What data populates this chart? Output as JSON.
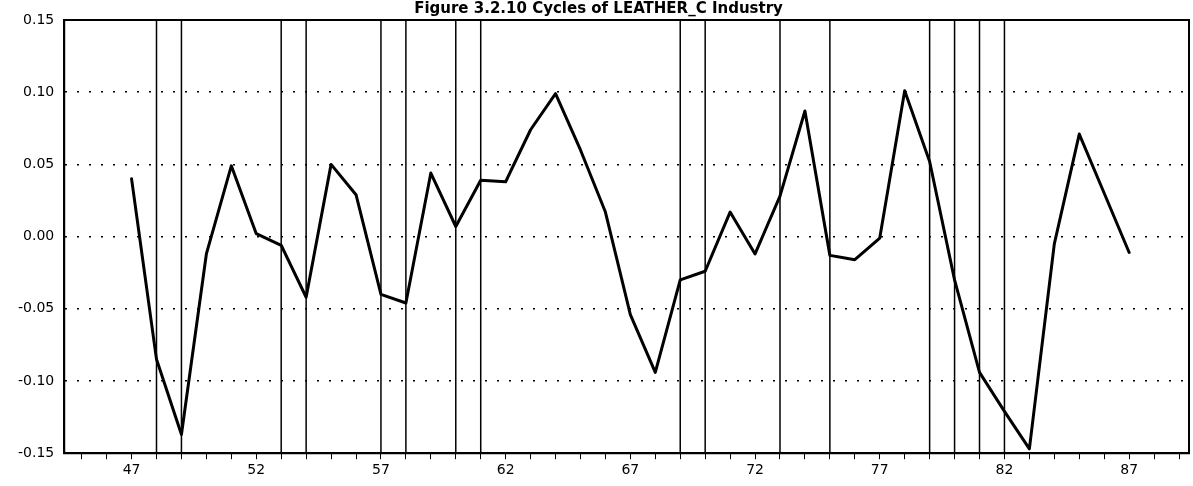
{
  "chart_data": {
    "type": "line",
    "title": "Figure 3.2.10 Cycles of LEATHER_C Industry",
    "x": [
      47,
      48,
      49,
      50,
      51,
      52,
      53,
      54,
      55,
      56,
      57,
      58,
      59,
      60,
      61,
      62,
      63,
      64,
      65,
      66,
      67,
      68,
      69,
      70,
      71,
      72,
      73,
      74,
      75,
      76,
      77,
      78,
      79,
      80,
      81,
      82,
      83,
      84,
      85,
      86,
      87
    ],
    "series": [
      {
        "color": "#000000",
        "values": [
          0.04,
          -0.085,
          -0.137,
          -0.012,
          0.049,
          0.002,
          -0.006,
          -0.042,
          0.05,
          0.029,
          -0.04,
          -0.046,
          0.044,
          0.007,
          0.039,
          0.038,
          0.074,
          0.099,
          0.06,
          0.017,
          -0.054,
          -0.094,
          -0.03,
          -0.024,
          0.017,
          -0.012,
          0.028,
          0.087,
          -0.013,
          -0.016,
          -0.001,
          0.101,
          0.052,
          -0.03,
          -0.094,
          -0.121,
          -0.147,
          -0.005,
          0.071,
          0.03,
          -0.011
        ]
      }
    ],
    "xlim": [
      44.3,
      89.4
    ],
    "xticks": [
      {
        "value": 45,
        "label": null
      },
      {
        "value": 46,
        "label": null
      },
      47,
      {
        "value": 48,
        "label": null
      },
      {
        "value": 49,
        "label": null
      },
      {
        "value": 50,
        "label": null
      },
      {
        "value": 51,
        "label": null
      },
      52,
      {
        "value": 53,
        "label": null
      },
      {
        "value": 54,
        "label": null
      },
      {
        "value": 55,
        "label": null
      },
      {
        "value": 56,
        "label": null
      },
      57,
      {
        "value": 58,
        "label": null
      },
      {
        "value": 59,
        "label": null
      },
      {
        "value": 60,
        "label": null
      },
      {
        "value": 61,
        "label": null
      },
      62,
      {
        "value": 63,
        "label": null
      },
      {
        "value": 64,
        "label": null
      },
      {
        "value": 65,
        "label": null
      },
      {
        "value": 66,
        "label": null
      },
      67,
      {
        "value": 68,
        "label": null
      },
      {
        "value": 69,
        "label": null
      },
      {
        "value": 70,
        "label": null
      },
      {
        "value": 71,
        "label": null
      },
      72,
      {
        "value": 73,
        "label": null
      },
      {
        "value": 74,
        "label": null
      },
      {
        "value": 75,
        "label": null
      },
      {
        "value": 76,
        "label": null
      },
      77,
      {
        "value": 78,
        "label": null
      },
      {
        "value": 79,
        "label": null
      },
      {
        "value": 80,
        "label": null
      },
      {
        "value": 81,
        "label": null
      },
      82,
      {
        "value": 83,
        "label": null
      },
      {
        "value": 84,
        "label": null
      },
      {
        "value": 85,
        "label": null
      },
      {
        "value": 86,
        "label": null
      },
      87,
      {
        "value": 88,
        "label": null
      },
      {
        "value": 89,
        "label": null
      }
    ],
    "ylim": [
      -0.15,
      0.15
    ],
    "yticks": [
      {
        "value": -0.15,
        "label": "-0.15"
      },
      {
        "value": -0.1,
        "label": "-0.10"
      },
      {
        "value": -0.05,
        "label": "-0.05"
      },
      {
        "value": 0,
        "label": "0.00"
      },
      {
        "value": 0.05,
        "label": "0.05"
      },
      {
        "value": 0.1,
        "label": "0.10"
      },
      {
        "value": 0.15,
        "label": "0.15"
      }
    ],
    "grid": "y",
    "marker": "none",
    "line_style": "solid",
    "legend": false,
    "ref_lines": [
      {
        "axis": "x",
        "value": 48,
        "color": "#000000"
      },
      {
        "axis": "x",
        "value": 49,
        "color": "#000000"
      },
      {
        "axis": "x",
        "value": 53,
        "color": "#000000"
      },
      {
        "axis": "x",
        "value": 54,
        "color": "#000000"
      },
      {
        "axis": "x",
        "value": 57,
        "color": "#000000"
      },
      {
        "axis": "x",
        "value": 58,
        "color": "#000000"
      },
      {
        "axis": "x",
        "value": 60,
        "color": "#000000"
      },
      {
        "axis": "x",
        "value": 61,
        "color": "#000000"
      },
      {
        "axis": "x",
        "value": 69,
        "color": "#000000"
      },
      {
        "axis": "x",
        "value": 70,
        "color": "#000000"
      },
      {
        "axis": "x",
        "value": 73,
        "color": "#000000"
      },
      {
        "axis": "x",
        "value": 75,
        "color": "#000000"
      },
      {
        "axis": "x",
        "value": 79,
        "color": "#000000"
      },
      {
        "axis": "x",
        "value": 80,
        "color": "#000000"
      },
      {
        "axis": "x",
        "value": 81,
        "color": "#000000"
      },
      {
        "axis": "x",
        "value": 82,
        "color": "#000000"
      }
    ]
  }
}
